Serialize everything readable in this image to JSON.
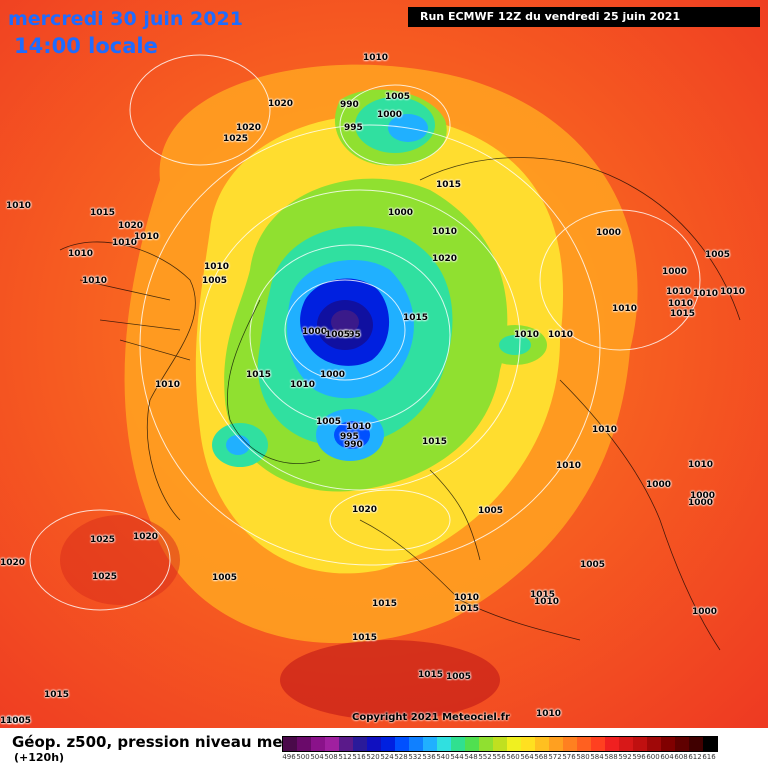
{
  "header": {
    "date": "mercredi 30 juin 2021",
    "time": "14:00 locale",
    "run": "Run ECMWF 12Z du vendredi 25 juin 2021"
  },
  "map": {
    "copyright": "Copyright 2021 Meteociel.fr",
    "isobar_labels": [
      "1010",
      "990",
      "1005",
      "1020",
      "1000",
      "995",
      "1020",
      "1025",
      "1010",
      "1015",
      "1020",
      "1010",
      "1010",
      "1010",
      "1010",
      "1010",
      "1005",
      "1010",
      "1000",
      "1020",
      "1010",
      "1010",
      "1015",
      "1000",
      "1000",
      "1005",
      "1010",
      "1010",
      "1015",
      "1010",
      "1010",
      "1010",
      "995",
      "1000",
      "1005",
      "1010",
      "1000",
      "1005",
      "1015",
      "1010",
      "1015",
      "1015",
      "1010",
      "1000",
      "1025",
      "1020",
      "995",
      "1010",
      "990",
      "1005",
      "1010",
      "1000",
      "1010",
      "1020",
      "1005",
      "1025",
      "1020",
      "1025",
      "1005",
      "1015",
      "1010",
      "1015",
      "1015",
      "1015",
      "1000",
      "1015",
      "1015",
      "1005",
      "1010",
      "1010",
      "1005",
      "1000"
    ]
  },
  "legend": {
    "title": "Géop. z500, pression niveau mer",
    "subtitle": "(+120h)",
    "scale_values": [
      "496",
      "500",
      "504",
      "508",
      "512",
      "516",
      "520",
      "524",
      "528",
      "532",
      "536",
      "540",
      "544",
      "548",
      "552",
      "556",
      "560",
      "564",
      "568",
      "572",
      "576",
      "580",
      "584",
      "588",
      "592",
      "596",
      "600",
      "604",
      "608",
      "612",
      "616"
    ],
    "scale_colors": [
      "#4a0a4a",
      "#6a0a6a",
      "#8a128a",
      "#a020a0",
      "#5a1a8a",
      "#2a1a9a",
      "#1010c0",
      "#0020e0",
      "#0050ff",
      "#1080ff",
      "#20b0ff",
      "#30e0e0",
      "#30e090",
      "#50e050",
      "#90e030",
      "#c0e020",
      "#f0f020",
      "#ffe020",
      "#ffc020",
      "#ffa020",
      "#ff8020",
      "#ff6020",
      "#ff4020",
      "#f02020",
      "#d81818",
      "#c01010",
      "#a00808",
      "#800000",
      "#600000",
      "#400000",
      "#000000"
    ]
  }
}
